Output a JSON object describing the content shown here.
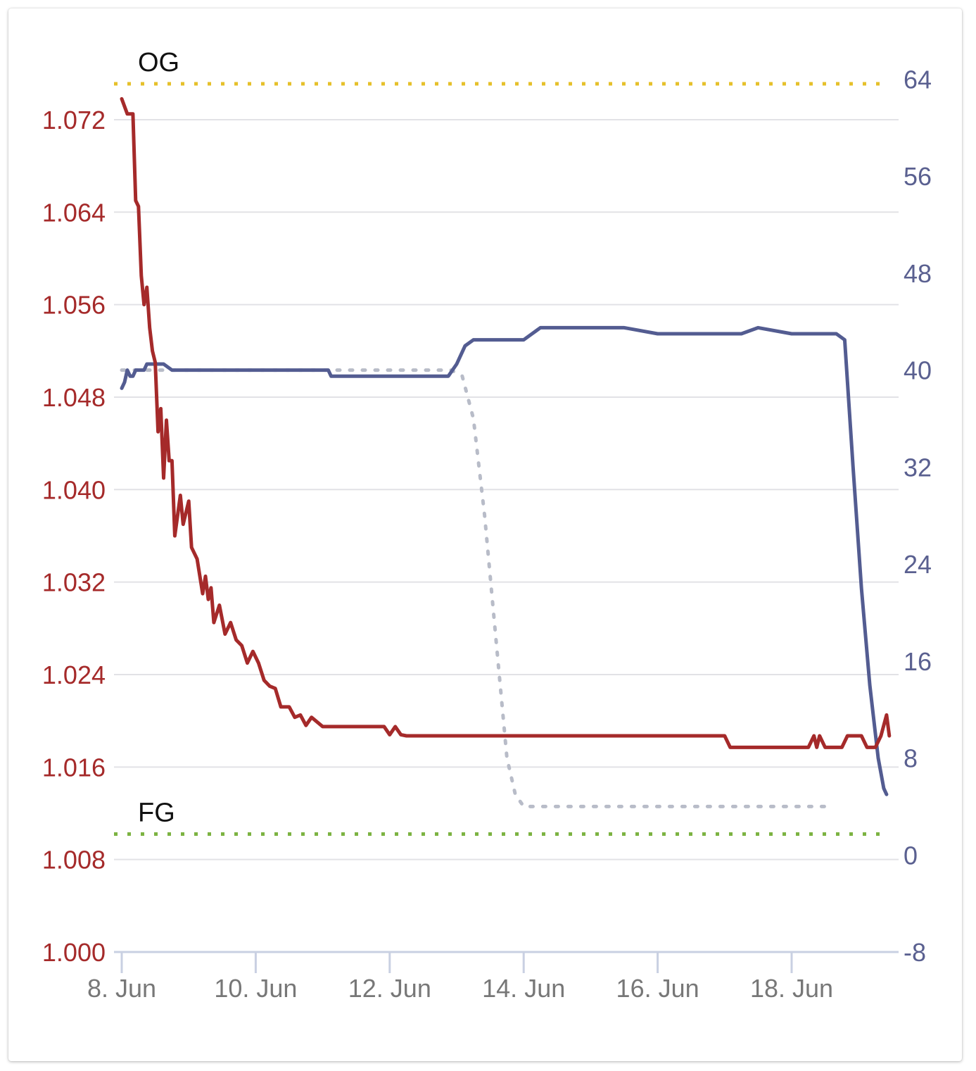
{
  "chart_data": {
    "type": "line",
    "x_axis": {
      "type": "date",
      "min": "2023-06-08",
      "max": "2023-06-19 12:00",
      "ticks": [
        "8. Jun",
        "10. Jun",
        "12. Jun",
        "14. Jun",
        "16. Jun",
        "18. Jun"
      ]
    },
    "y_left": {
      "min": 1.0,
      "max": 1.0776,
      "ticks": [
        "1.000",
        "1.008",
        "1.016",
        "1.024",
        "1.032",
        "1.040",
        "1.048",
        "1.056",
        "1.064",
        "1.072"
      ],
      "color": "#a52a2a"
    },
    "y_right": {
      "min": -8,
      "max": 66,
      "ticks": [
        "-8",
        "0",
        "8",
        "16",
        "24",
        "32",
        "40",
        "48",
        "56",
        "64"
      ],
      "color": "#5a6090"
    },
    "reference_lines": [
      {
        "label": "OG",
        "value": 1.0751,
        "color": "#e6c02a"
      },
      {
        "label": "FG",
        "value": 1.0102,
        "color": "#7cb342"
      }
    ],
    "grid": true,
    "series": [
      {
        "axis": "left",
        "color": "#a52a2a",
        "points": [
          [
            "2023-06-08 00:00",
            1.0738
          ],
          [
            "2023-06-08 02:00",
            1.0725
          ],
          [
            "2023-06-08 04:00",
            1.0725
          ],
          [
            "2023-06-08 05:00",
            1.065
          ],
          [
            "2023-06-08 06:00",
            1.0645
          ],
          [
            "2023-06-08 07:00",
            1.0585
          ],
          [
            "2023-06-08 08:00",
            1.056
          ],
          [
            "2023-06-08 09:00",
            1.0575
          ],
          [
            "2023-06-08 10:00",
            1.054
          ],
          [
            "2023-06-08 11:00",
            1.052
          ],
          [
            "2023-06-08 12:00",
            1.051
          ],
          [
            "2023-06-08 13:00",
            1.045
          ],
          [
            "2023-06-08 14:00",
            1.047
          ],
          [
            "2023-06-08 15:00",
            1.041
          ],
          [
            "2023-06-08 16:00",
            1.046
          ],
          [
            "2023-06-08 17:00",
            1.0425
          ],
          [
            "2023-06-08 18:00",
            1.0425
          ],
          [
            "2023-06-08 19:00",
            1.036
          ],
          [
            "2023-06-08 21:00",
            1.0395
          ],
          [
            "2023-06-08 22:00",
            1.037
          ],
          [
            "2023-06-09 00:00",
            1.039
          ],
          [
            "2023-06-09 01:00",
            1.035
          ],
          [
            "2023-06-09 03:00",
            1.034
          ],
          [
            "2023-06-09 05:00",
            1.031
          ],
          [
            "2023-06-09 06:00",
            1.0325
          ],
          [
            "2023-06-09 07:00",
            1.0305
          ],
          [
            "2023-06-09 08:00",
            1.0315
          ],
          [
            "2023-06-09 09:00",
            1.0285
          ],
          [
            "2023-06-09 11:00",
            1.03
          ],
          [
            "2023-06-09 13:00",
            1.0275
          ],
          [
            "2023-06-09 15:00",
            1.0285
          ],
          [
            "2023-06-09 17:00",
            1.027
          ],
          [
            "2023-06-09 19:00",
            1.0265
          ],
          [
            "2023-06-09 21:00",
            1.025
          ],
          [
            "2023-06-09 23:00",
            1.026
          ],
          [
            "2023-06-10 01:00",
            1.025
          ],
          [
            "2023-06-10 03:00",
            1.0235
          ],
          [
            "2023-06-10 05:00",
            1.023
          ],
          [
            "2023-06-10 07:00",
            1.0228
          ],
          [
            "2023-06-10 09:00",
            1.0212
          ],
          [
            "2023-06-10 12:00",
            1.0212
          ],
          [
            "2023-06-10 14:00",
            1.0203
          ],
          [
            "2023-06-10 16:00",
            1.0205
          ],
          [
            "2023-06-10 18:00",
            1.0196
          ],
          [
            "2023-06-10 20:00",
            1.0203
          ],
          [
            "2023-06-11 00:00",
            1.0195
          ],
          [
            "2023-06-11 06:00",
            1.0195
          ],
          [
            "2023-06-11 12:00",
            1.0195
          ],
          [
            "2023-06-11 18:00",
            1.0195
          ],
          [
            "2023-06-11 22:00",
            1.0195
          ],
          [
            "2023-06-12 00:00",
            1.0188
          ],
          [
            "2023-06-12 02:00",
            1.0195
          ],
          [
            "2023-06-12 04:00",
            1.0188
          ],
          [
            "2023-06-12 06:00",
            1.0187
          ],
          [
            "2023-06-12 12:00",
            1.0187
          ],
          [
            "2023-06-13 00:00",
            1.0187
          ],
          [
            "2023-06-14 00:00",
            1.0187
          ],
          [
            "2023-06-15 00:00",
            1.0187
          ],
          [
            "2023-06-16 00:00",
            1.0187
          ],
          [
            "2023-06-16 12:00",
            1.0187
          ],
          [
            "2023-06-17 00:00",
            1.0187
          ],
          [
            "2023-06-17 02:00",
            1.0177
          ],
          [
            "2023-06-17 12:00",
            1.0177
          ],
          [
            "2023-06-18 00:00",
            1.0177
          ],
          [
            "2023-06-18 06:00",
            1.0177
          ],
          [
            "2023-06-18 08:00",
            1.0187
          ],
          [
            "2023-06-18 09:00",
            1.0177
          ],
          [
            "2023-06-18 10:00",
            1.0187
          ],
          [
            "2023-06-18 12:00",
            1.0177
          ],
          [
            "2023-06-18 18:00",
            1.0177
          ],
          [
            "2023-06-18 20:00",
            1.0187
          ],
          [
            "2023-06-19 01:00",
            1.0187
          ],
          [
            "2023-06-19 03:00",
            1.0177
          ],
          [
            "2023-06-19 06:00",
            1.0177
          ],
          [
            "2023-06-19 08:00",
            1.0187
          ],
          [
            "2023-06-19 10:00",
            1.0205
          ],
          [
            "2023-06-19 11:00",
            1.0187
          ]
        ]
      },
      {
        "axis": "right",
        "color": "#535c91",
        "points": [
          [
            "2023-06-08 00:00",
            38.5
          ],
          [
            "2023-06-08 01:00",
            39.0
          ],
          [
            "2023-06-08 02:00",
            40.0
          ],
          [
            "2023-06-08 03:00",
            39.5
          ],
          [
            "2023-06-08 04:00",
            39.5
          ],
          [
            "2023-06-08 05:00",
            40.0
          ],
          [
            "2023-06-08 06:00",
            40.0
          ],
          [
            "2023-06-08 08:00",
            40.0
          ],
          [
            "2023-06-08 09:00",
            40.5
          ],
          [
            "2023-06-08 15:00",
            40.5
          ],
          [
            "2023-06-08 18:00",
            40.0
          ],
          [
            "2023-06-09 00:00",
            40.0
          ],
          [
            "2023-06-10 00:00",
            40.0
          ],
          [
            "2023-06-11 00:00",
            40.0
          ],
          [
            "2023-06-11 02:00",
            40.0
          ],
          [
            "2023-06-11 03:00",
            39.5
          ],
          [
            "2023-06-11 06:00",
            39.5
          ],
          [
            "2023-06-11 12:00",
            39.5
          ],
          [
            "2023-06-11 18:00",
            39.5
          ],
          [
            "2023-06-12 00:00",
            39.5
          ],
          [
            "2023-06-12 06:00",
            39.5
          ],
          [
            "2023-06-12 12:00",
            39.5
          ],
          [
            "2023-06-12 18:00",
            39.5
          ],
          [
            "2023-06-12 21:00",
            39.5
          ],
          [
            "2023-06-13 00:00",
            40.5
          ],
          [
            "2023-06-13 03:00",
            42.0
          ],
          [
            "2023-06-13 06:00",
            42.5
          ],
          [
            "2023-06-13 09:00",
            42.5
          ],
          [
            "2023-06-14 00:00",
            42.5
          ],
          [
            "2023-06-14 03:00",
            43.0
          ],
          [
            "2023-06-14 06:00",
            43.5
          ],
          [
            "2023-06-15 00:00",
            43.5
          ],
          [
            "2023-06-15 12:00",
            43.5
          ],
          [
            "2023-06-16 00:00",
            43.0
          ],
          [
            "2023-06-16 12:00",
            43.0
          ],
          [
            "2023-06-17 00:00",
            43.0
          ],
          [
            "2023-06-17 06:00",
            43.0
          ],
          [
            "2023-06-17 12:00",
            43.5
          ],
          [
            "2023-06-18 00:00",
            43.0
          ],
          [
            "2023-06-18 12:00",
            43.0
          ],
          [
            "2023-06-18 16:00",
            43.0
          ],
          [
            "2023-06-18 19:00",
            42.5
          ],
          [
            "2023-06-18 22:00",
            32.0
          ],
          [
            "2023-06-19 01:00",
            22.0
          ],
          [
            "2023-06-19 04:00",
            14.0
          ],
          [
            "2023-06-19 07:00",
            8.0
          ],
          [
            "2023-06-19 09:00",
            5.5
          ],
          [
            "2023-06-19 10:00",
            5.0
          ]
        ]
      },
      {
        "axis": "right",
        "color": "#b8bcc8",
        "style": "dotted",
        "points": [
          [
            "2023-06-08 00:00",
            40.0
          ],
          [
            "2023-06-10 00:00",
            40.0
          ],
          [
            "2023-06-12 00:00",
            40.0
          ],
          [
            "2023-06-12 22:00",
            40.0
          ],
          [
            "2023-06-13 02:00",
            39.5
          ],
          [
            "2023-06-13 06:00",
            36.0
          ],
          [
            "2023-06-13 10:00",
            28.0
          ],
          [
            "2023-06-13 14:00",
            18.0
          ],
          [
            "2023-06-13 18:00",
            8.0
          ],
          [
            "2023-06-13 21:00",
            5.0
          ],
          [
            "2023-06-14 00:00",
            4.0
          ],
          [
            "2023-06-15 00:00",
            4.0
          ],
          [
            "2023-06-16 00:00",
            4.0
          ],
          [
            "2023-06-17 00:00",
            4.0
          ],
          [
            "2023-06-18 00:00",
            4.0
          ],
          [
            "2023-06-18 14:00",
            4.0
          ]
        ]
      }
    ]
  }
}
